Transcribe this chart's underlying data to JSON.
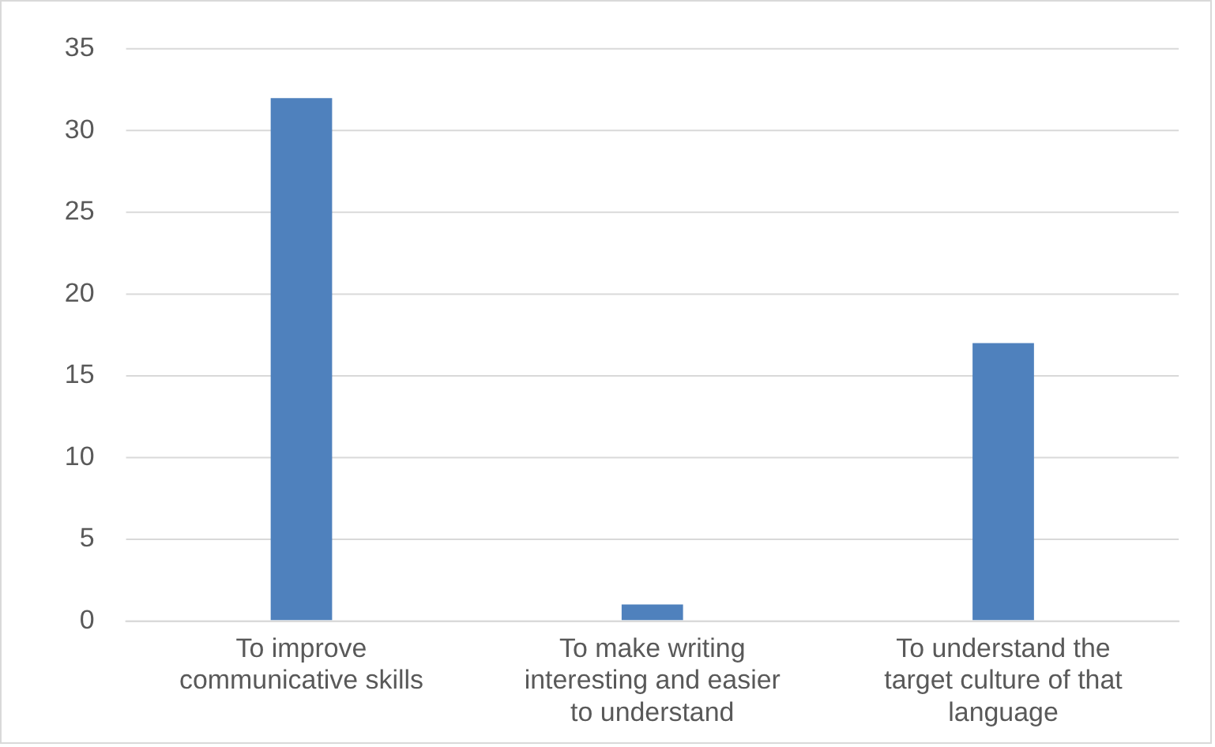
{
  "chart_data": {
    "type": "bar",
    "categories": [
      "To improve communicative skills",
      "To make writing interesting and easier to understand",
      "To understand the target culture of that language"
    ],
    "values": [
      32,
      1,
      17
    ],
    "color": "#4f81bd",
    "ylim": [
      0,
      35
    ],
    "yticks": [
      0,
      5,
      10,
      15,
      20,
      25,
      30,
      35
    ],
    "grid": "y"
  }
}
